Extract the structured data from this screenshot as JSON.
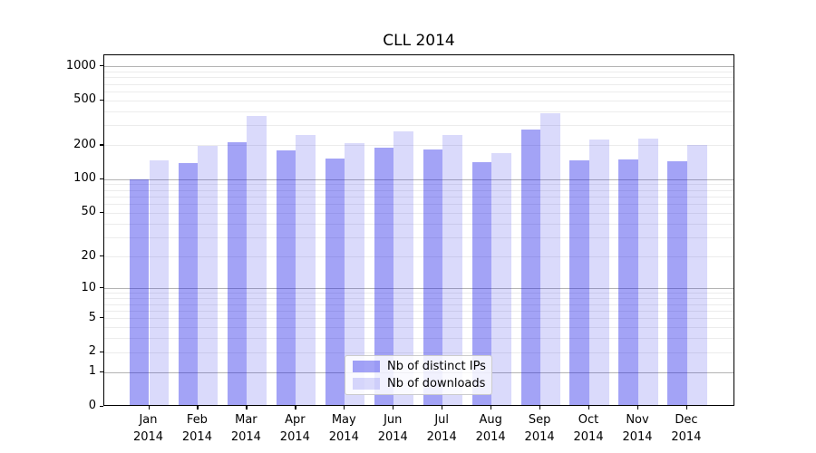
{
  "chart_data": {
    "type": "bar",
    "title": "CLL 2014",
    "categories": [
      "Jan",
      "Feb",
      "Mar",
      "Apr",
      "May",
      "Jun",
      "Jul",
      "Aug",
      "Sep",
      "Oct",
      "Nov",
      "Dec"
    ],
    "category_year": "2014",
    "series": [
      {
        "name": "Nb of distinct IPs",
        "color": "rgba(25,25,233,0.40)",
        "values": [
          100,
          140,
          211,
          179,
          153,
          190,
          182,
          142,
          278,
          148,
          151,
          145
        ]
      },
      {
        "name": "Nb of downloads",
        "color": "rgba(25,25,233,0.16)",
        "values": [
          148,
          199,
          363,
          249,
          210,
          265,
          248,
          170,
          384,
          223,
          231,
          202
        ]
      }
    ],
    "yticks": [
      0,
      1,
      2,
      5,
      10,
      20,
      50,
      100,
      200,
      500,
      1000
    ],
    "yscale": "log1p",
    "ylim": [
      0,
      1250
    ],
    "xlabel": "",
    "ylabel": "",
    "grid": true,
    "legend_position": "lower-center"
  }
}
